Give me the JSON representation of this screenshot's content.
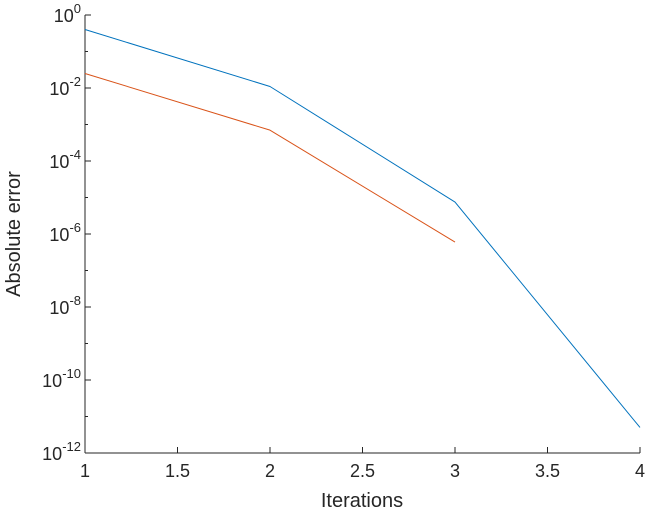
{
  "chart_data": {
    "type": "line",
    "title": "",
    "xlabel": "Iterations",
    "ylabel": "Absolute error",
    "xlim": [
      1,
      4
    ],
    "ylim": [
      1e-12,
      1
    ],
    "yscale": "log",
    "grid": false,
    "legend": "none",
    "x_ticks": [
      1,
      1.5,
      2,
      2.5,
      3,
      3.5,
      4
    ],
    "x_tick_labels": [
      "1",
      "1.5",
      "2",
      "2.5",
      "3",
      "3.5",
      "4"
    ],
    "y_ticks": [
      {
        "base": "10",
        "exponent": "0",
        "value": 1
      },
      {
        "base": "10",
        "exponent": "-2",
        "value": 0.01
      },
      {
        "base": "10",
        "exponent": "-4",
        "value": 0.0001
      },
      {
        "base": "10",
        "exponent": "-6",
        "value": 1e-06
      },
      {
        "base": "10",
        "exponent": "-8",
        "value": 1e-08
      },
      {
        "base": "10",
        "exponent": "-10",
        "value": 1e-10
      },
      {
        "base": "10",
        "exponent": "-12",
        "value": 1e-12
      }
    ],
    "series": [
      {
        "color": "#0072bd",
        "x": [
          1,
          2,
          3,
          4
        ],
        "y": [
          0.4,
          0.011,
          7.5e-06,
          5e-12
        ]
      },
      {
        "color": "#d95319",
        "x": [
          1,
          2,
          3
        ],
        "y": [
          0.025,
          0.0007,
          6e-07
        ]
      }
    ]
  }
}
